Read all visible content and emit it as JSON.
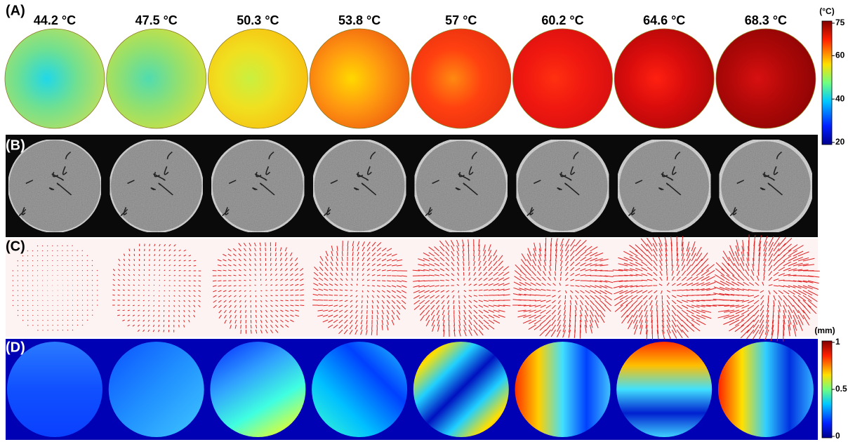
{
  "panels": [
    {
      "label": "(A)"
    },
    {
      "label": "(B)"
    },
    {
      "label": "(C)"
    },
    {
      "label": "(D)"
    }
  ],
  "temperatures": [
    "44.2 °C",
    "47.5 °C",
    "50.3 °C",
    "53.8 °C",
    "57 °C",
    "60.2 °C",
    "64.6 °C",
    "68.3 °C"
  ],
  "temperature_colorbar": {
    "unit": "(°C)",
    "ticks": [
      75,
      60,
      40,
      20
    ]
  },
  "displacement_colorbar": {
    "unit": "(mm)",
    "ticks": [
      1,
      0.5,
      0
    ]
  }
}
